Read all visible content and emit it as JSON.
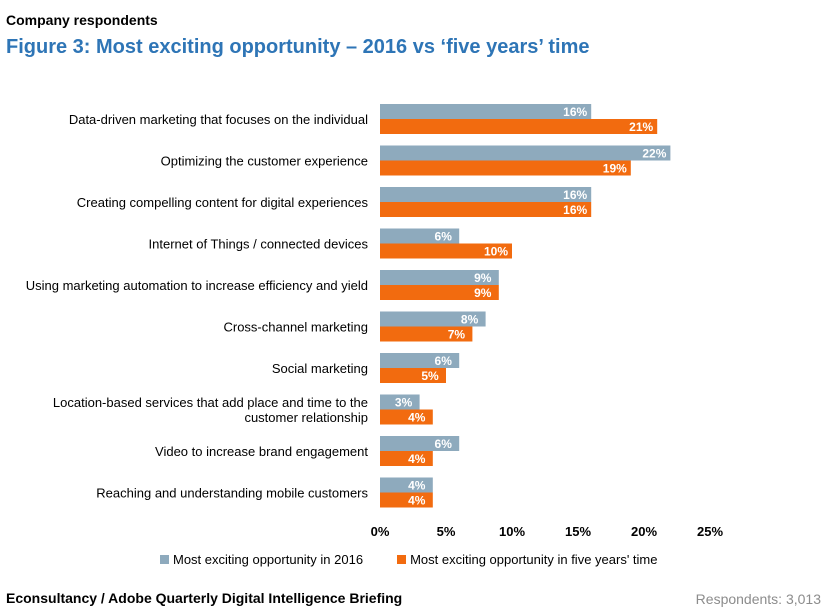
{
  "header": {
    "subtitle": "Company respondents",
    "title": "Figure 3: Most exciting opportunity – 2016 vs ‘five years’ time"
  },
  "footer": {
    "source": "Econsultancy / Adobe Quarterly Digital Intelligence Briefing",
    "respondents": "Respondents: 3,013"
  },
  "colors": {
    "series_2016": "#8eaabd",
    "series_five_years": "#f26b0f"
  },
  "chart_data": {
    "type": "bar",
    "orientation": "horizontal",
    "categories": [
      [
        "Data-driven marketing that focuses on the individual"
      ],
      [
        "Optimizing the customer experience"
      ],
      [
        "Creating compelling content for digital experiences"
      ],
      [
        "Internet of Things / connected devices"
      ],
      [
        "Using marketing automation to increase efficiency and yield"
      ],
      [
        "Cross-channel marketing"
      ],
      [
        "Social marketing"
      ],
      [
        "Location-based services that add place and time to the",
        "customer relationship"
      ],
      [
        "Video to increase brand engagement"
      ],
      [
        "Reaching and understanding mobile customers"
      ]
    ],
    "series": [
      {
        "name": "Most exciting opportunity in 2016",
        "values": [
          16,
          22,
          16,
          6,
          9,
          8,
          6,
          3,
          6,
          4
        ]
      },
      {
        "name": "Most exciting opportunity in five years' time",
        "values": [
          21,
          19,
          16,
          10,
          9,
          7,
          5,
          4,
          4,
          4
        ]
      }
    ],
    "x_ticks": [
      "0%",
      "5%",
      "10%",
      "15%",
      "20%",
      "25%"
    ],
    "xlim": [
      0,
      25
    ],
    "value_suffix": "%",
    "grid": false,
    "legend_position": "bottom"
  }
}
